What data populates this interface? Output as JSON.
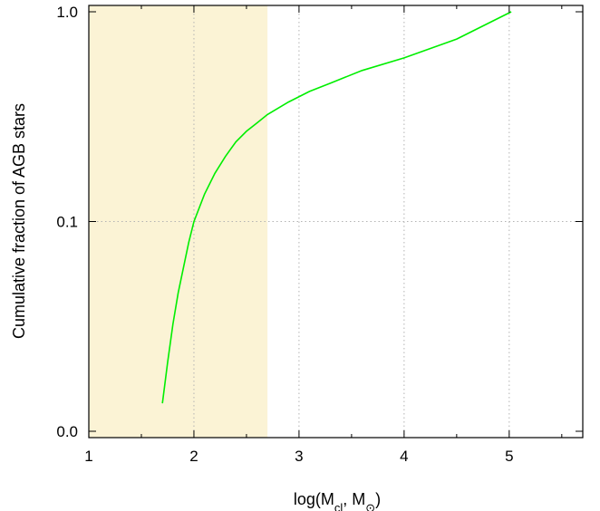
{
  "chart_data": {
    "type": "line",
    "title": "",
    "xlabel": {
      "prefix": "log(M",
      "sub1": "cl",
      "mid": ", M",
      "sub2": "⊙",
      "suffix": ")"
    },
    "ylabel": "Cumulative fraction of AGB stars",
    "xlim": [
      1,
      5.7
    ],
    "y_scale": "log",
    "y_ticks": [
      {
        "value": 0.01,
        "label": "0.0"
      },
      {
        "value": 0.1,
        "label": "0.1"
      },
      {
        "value": 1.0,
        "label": "1.0"
      }
    ],
    "x_ticks": [
      {
        "value": 1,
        "label": "1"
      },
      {
        "value": 2,
        "label": "2"
      },
      {
        "value": 3,
        "label": "3"
      },
      {
        "value": 4,
        "label": "4"
      },
      {
        "value": 5,
        "label": "5"
      }
    ],
    "grid": true,
    "shaded_region": {
      "x": [
        1,
        2.7
      ],
      "color": "#fbf3d5"
    },
    "series": [
      {
        "color": "#00ee00",
        "x": [
          1.7,
          1.75,
          1.8,
          1.85,
          1.9,
          1.95,
          2.0,
          2.1,
          2.2,
          2.3,
          2.4,
          2.5,
          2.6,
          2.7,
          2.9,
          3.1,
          3.3,
          3.6,
          4.0,
          4.5,
          5.02
        ],
        "y": [
          0.0136,
          0.0214,
          0.0324,
          0.0457,
          0.0603,
          0.0794,
          0.1,
          0.1349,
          0.1698,
          0.2042,
          0.2399,
          0.2692,
          0.2951,
          0.3236,
          0.3715,
          0.417,
          0.4571,
          0.5248,
          0.6026,
          0.7413,
          1.0
        ]
      }
    ]
  }
}
